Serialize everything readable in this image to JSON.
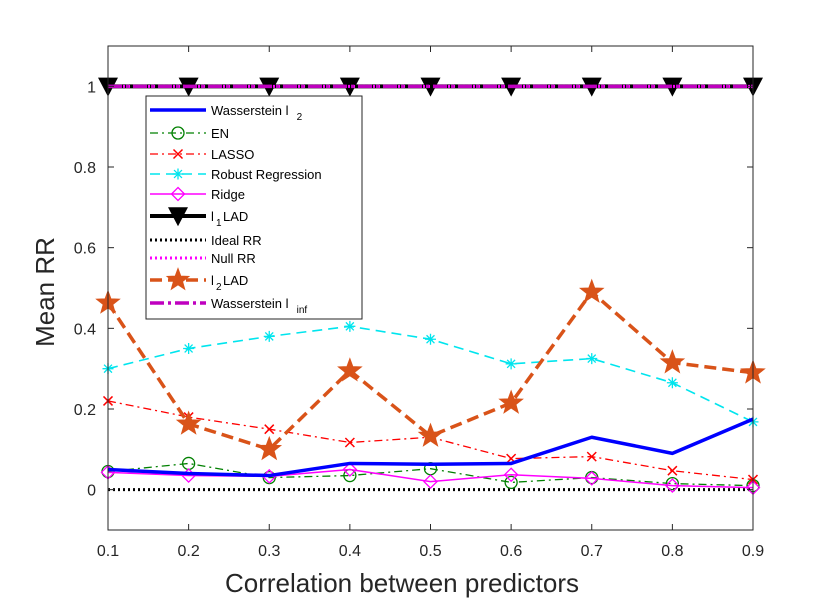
{
  "chart_data": {
    "type": "line",
    "title": "",
    "xlabel": "Correlation between predictors",
    "ylabel": "Mean RR",
    "xlim": [
      0.1,
      0.9
    ],
    "ylim": [
      -0.1,
      1.1
    ],
    "x": [
      0.1,
      0.2,
      0.3,
      0.4,
      0.5,
      0.6,
      0.7,
      0.8,
      0.9
    ],
    "x_tick_labels": [
      "0.1",
      "0.2",
      "0.3",
      "0.4",
      "0.5",
      "0.6",
      "0.7",
      "0.8",
      "0.9"
    ],
    "y_ticks": [
      0,
      0.2,
      0.4,
      0.6,
      0.8,
      1
    ],
    "y_tick_labels": [
      "0",
      "0.2",
      "0.4",
      "0.6",
      "0.8",
      "1"
    ],
    "grid": false,
    "legend_position": "upper-left",
    "series": [
      {
        "key": "wasserstein-l2",
        "name": "Wasserstein l",
        "sub": "2",
        "color": "#0000ff",
        "dash": "",
        "width": 3.5,
        "marker": "none",
        "values": [
          0.05,
          0.04,
          0.035,
          0.065,
          0.063,
          0.065,
          0.13,
          0.09,
          0.175
        ]
      },
      {
        "key": "en",
        "name": "EN",
        "sub": "",
        "color": "#008000",
        "dash": "8,4,2,4",
        "width": 1.3,
        "marker": "circle",
        "values": [
          0.045,
          0.065,
          0.03,
          0.035,
          0.052,
          0.018,
          0.03,
          0.015,
          0.01
        ]
      },
      {
        "key": "lasso",
        "name": "LASSO",
        "sub": "",
        "color": "#ff0000",
        "dash": "8,4,2,4",
        "width": 1.3,
        "marker": "x",
        "values": [
          0.22,
          0.18,
          0.15,
          0.117,
          0.13,
          0.077,
          0.082,
          0.047,
          0.025
        ]
      },
      {
        "key": "robust-regression",
        "name": "Robust Regression",
        "sub": "",
        "color": "#00e5ee",
        "dash": "10,6",
        "width": 1.6,
        "marker": "asterisk",
        "values": [
          0.3,
          0.35,
          0.38,
          0.405,
          0.373,
          0.312,
          0.325,
          0.265,
          0.168
        ]
      },
      {
        "key": "ridge",
        "name": "Ridge",
        "sub": "",
        "color": "#ff00ff",
        "dash": "",
        "width": 1.5,
        "marker": "diamond",
        "values": [
          0.043,
          0.035,
          0.033,
          0.05,
          0.02,
          0.037,
          0.028,
          0.01,
          0.005
        ]
      },
      {
        "key": "l1-lad",
        "name": "l",
        "sub": "1",
        "suffix": " LAD",
        "color": "#000000",
        "dash": "",
        "width": 4,
        "marker": "triangle-down",
        "values": [
          1,
          1,
          1,
          1,
          1,
          1,
          1,
          1,
          1
        ]
      },
      {
        "key": "ideal-rr",
        "name": "Ideal RR",
        "sub": "",
        "color": "#000000",
        "dash": "2,3",
        "width": 3,
        "marker": "none",
        "values": [
          0,
          0,
          0,
          0,
          0,
          0,
          0,
          0,
          0
        ]
      },
      {
        "key": "null-rr",
        "name": "Null RR",
        "sub": "",
        "color": "#ff00ff",
        "dash": "2,3",
        "width": 3,
        "marker": "none",
        "values": [
          1,
          1,
          1,
          1,
          1,
          1,
          1,
          1,
          1
        ]
      },
      {
        "key": "l2-lad",
        "name": "l",
        "sub": "2",
        "suffix": " LAD",
        "color": "#d95319",
        "dash": "12,6",
        "width": 3.5,
        "marker": "star",
        "values": [
          0.463,
          0.163,
          0.1,
          0.295,
          0.133,
          0.215,
          0.49,
          0.315,
          0.29
        ]
      },
      {
        "key": "wasserstein-linf",
        "name": "Wasserstein l",
        "sub": "inf",
        "color": "#bf00bf",
        "dash": "14,4,3,4",
        "width": 3.5,
        "marker": "none",
        "values": [
          1,
          1,
          1,
          1,
          1,
          1,
          1,
          1,
          1
        ]
      }
    ]
  }
}
